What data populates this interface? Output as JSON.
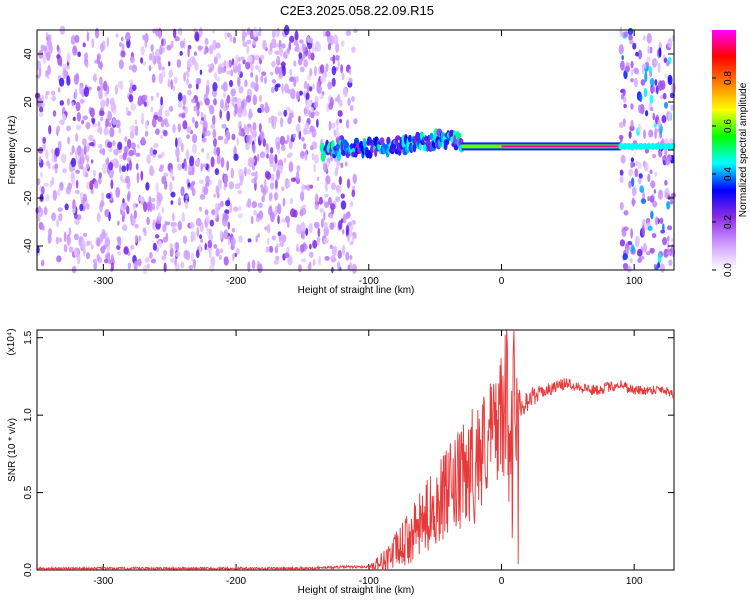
{
  "title": "C2E3.2025.058.22.09.R15",
  "chart_data": [
    {
      "type": "heatmap",
      "xlabel": "Height of straight line (km)",
      "ylabel": "Frequency (Hz)",
      "xlim": [
        -350,
        130
      ],
      "ylim": [
        -50,
        50
      ],
      "xticks": [
        "-300",
        "-200",
        "-100",
        "0",
        "100"
      ],
      "xtick_values": [
        -300,
        -200,
        -100,
        0,
        100
      ],
      "yticks": [
        "-40",
        "-20",
        "0",
        "20",
        "40"
      ],
      "ytick_values": [
        -40,
        -20,
        0,
        20,
        40
      ],
      "colorbar": {
        "label": "Normalized spectral amplitude",
        "range": [
          0,
          1
        ],
        "ticks": [
          "0.0",
          "0.2",
          "0.4",
          "0.6",
          "0.8"
        ],
        "tick_values": [
          0,
          0.2,
          0.4,
          0.6,
          0.8
        ],
        "colors": [
          "#ffffff",
          "#cc99ff",
          "#8a2be2",
          "#0000ff",
          "#00ffff",
          "#00ff00",
          "#ffff00",
          "#ff8000",
          "#ff0000",
          "#ff00ff"
        ]
      },
      "regions": [
        {
          "x": [
            -350,
            -110
          ],
          "y": [
            -50,
            50
          ],
          "pattern": "broadband noise",
          "amplitude": [
            0.05,
            0.2
          ]
        },
        {
          "x": [
            -135,
            -30
          ],
          "y": [
            -3,
            7
          ],
          "pattern": "scattered narrow signal",
          "amplitude": [
            0.2,
            0.5
          ]
        },
        {
          "x": [
            -30,
            90
          ],
          "y": [
            1,
            2
          ],
          "pattern": "narrow carrier line",
          "amplitude": [
            0.6,
            1.0
          ]
        },
        {
          "x": [
            90,
            130
          ],
          "y": [
            -50,
            50
          ],
          "pattern": "broadband noise with carrier",
          "amplitude": [
            0.05,
            0.3
          ]
        }
      ],
      "carrier_centerline": {
        "x": [
          -130,
          -100,
          -80,
          -60,
          -45,
          -30,
          -15,
          0,
          20,
          50,
          90,
          130
        ],
        "y": [
          0,
          1,
          2,
          3,
          5,
          3,
          1,
          1.5,
          1.5,
          1.5,
          1.5,
          1.5
        ]
      }
    },
    {
      "type": "line",
      "xlabel": "Height of straight line (km)",
      "ylabel": "SNR (10 * v/v)",
      "y_multiplier": "(x10⁴)",
      "xlim": [
        -350,
        130
      ],
      "ylim": [
        0,
        1.55
      ],
      "xticks": [
        "-300",
        "-200",
        "-100",
        "0",
        "100"
      ],
      "xtick_values": [
        -300,
        -200,
        -100,
        0,
        100
      ],
      "yticks": [
        "0.0",
        "0.5",
        "1.0",
        "1.5"
      ],
      "ytick_values": [
        0,
        0.5,
        1.0,
        1.5
      ],
      "line_color": "#e8393a",
      "series": [
        {
          "x": [
            -350,
            -300,
            -250,
            -200,
            -150,
            -120,
            -100,
            -90,
            -80,
            -70,
            -60,
            -50,
            -40,
            -30,
            -20,
            -10,
            0,
            5,
            10,
            15,
            20,
            30,
            40,
            50,
            60,
            70,
            80,
            90,
            100,
            110,
            120,
            130
          ],
          "y": [
            0.01,
            0.01,
            0.01,
            0.01,
            0.01,
            0.02,
            0.02,
            0.05,
            0.12,
            0.2,
            0.3,
            0.42,
            0.5,
            0.58,
            0.7,
            0.85,
            1.0,
            1.1,
            1.15,
            1.08,
            1.1,
            1.15,
            1.18,
            1.21,
            1.18,
            1.16,
            1.18,
            1.2,
            1.16,
            1.16,
            1.17,
            1.14
          ]
        }
      ],
      "noise_envelope": {
        "x": [
          -100,
          -80,
          -60,
          -40,
          -20,
          -5,
          5,
          10,
          15,
          30,
          130
        ],
        "amplitude": [
          0.02,
          0.12,
          0.22,
          0.3,
          0.4,
          0.35,
          0.5,
          0.55,
          0.1,
          0.04,
          0.03
        ]
      }
    }
  ]
}
